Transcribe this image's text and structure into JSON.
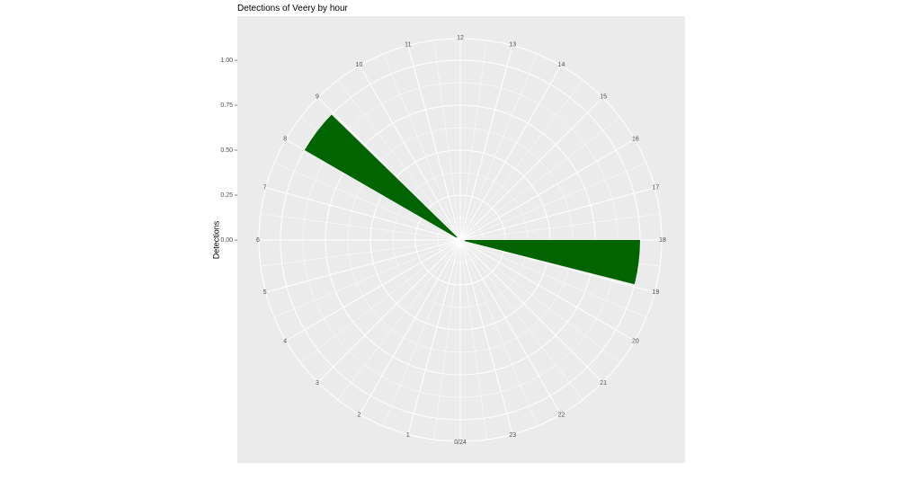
{
  "chart_data": {
    "type": "polar-bar",
    "title": "Detections of Veery by hour",
    "y_label": "Detections",
    "x": [
      8,
      18
    ],
    "values": [
      1,
      1
    ],
    "color": "#006400",
    "xlim": [
      0,
      24
    ],
    "xticks": [
      {
        "value": 0,
        "label": "0/24"
      },
      1,
      2,
      3,
      4,
      5,
      6,
      7,
      8,
      9,
      10,
      11,
      12,
      13,
      14,
      15,
      16,
      17,
      18,
      19,
      20,
      21,
      22,
      23
    ],
    "ylim": [
      0,
      1.12
    ],
    "yticks": [
      {
        "value": 0,
        "label": "0.00"
      },
      {
        "value": 0.25,
        "label": "0.25"
      },
      {
        "value": 0.5,
        "label": "0.50"
      },
      {
        "value": 0.75,
        "label": "0.75"
      },
      {
        "value": 1,
        "label": "1.00"
      }
    ],
    "grid": true
  }
}
